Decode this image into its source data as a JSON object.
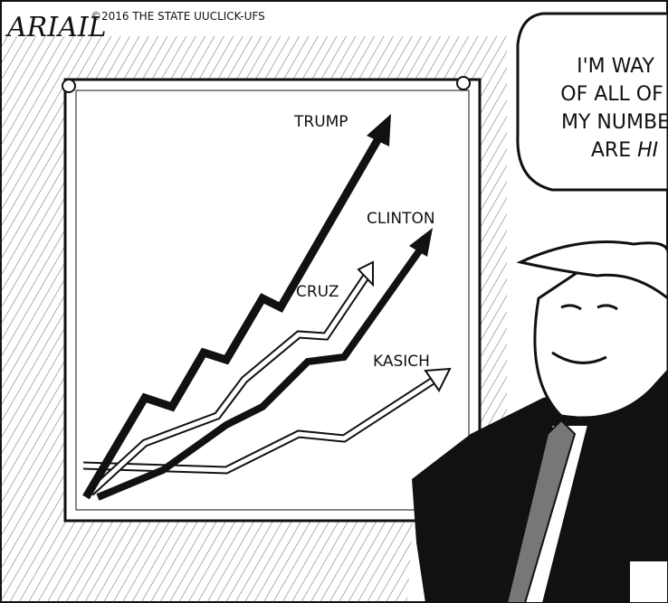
{
  "signature": "ARIAIL",
  "credit": "©2016 THE STATE UUCLICK-UFS",
  "chart": {
    "labels": [
      "TRUMP",
      "CLINTON",
      "CRUZ",
      "KASICH"
    ]
  },
  "bubble": {
    "lines": [
      "I'M WAY",
      "OF ALL OF",
      "MY NUMBE"
    ],
    "last": {
      "text": "ARE",
      "emphasis": "HI"
    }
  }
}
